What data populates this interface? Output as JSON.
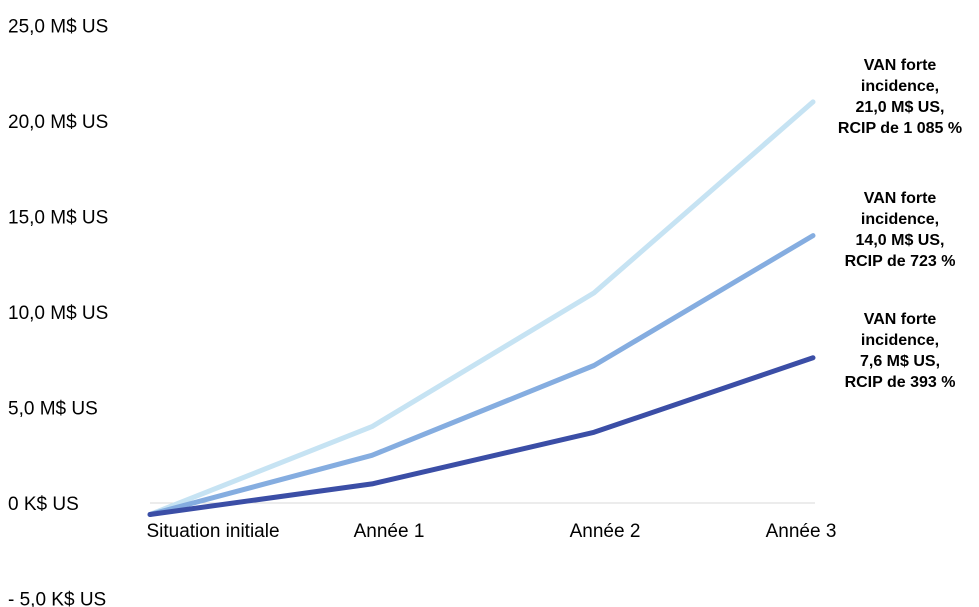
{
  "chart_data": {
    "type": "line",
    "title": "",
    "xlabel": "",
    "ylabel": "",
    "categories": [
      "Situation initiale",
      "Année 1",
      "Année 2",
      "Année 3"
    ],
    "ylim": [
      -5,
      25
    ],
    "y_ticks": [
      {
        "value": 25,
        "label": "25,0 M$ US"
      },
      {
        "value": 20,
        "label": "20,0 M$ US"
      },
      {
        "value": 15,
        "label": "15,0 M$ US"
      },
      {
        "value": 10,
        "label": "10,0 M$ US"
      },
      {
        "value": 5,
        "label": "5,0 M$ US"
      },
      {
        "value": 0,
        "label": "0 K$ US"
      },
      {
        "value": -5,
        "label": "- 5,0 K$ US"
      }
    ],
    "grid": false,
    "series": [
      {
        "color": "#c6e3f3",
        "values": [
          -0.6,
          4.0,
          11.0,
          21.0
        ],
        "annotation": [
          "VAN forte",
          "incidence,",
          "21,0 M$ US,",
          "RCIP de 1 085 %"
        ]
      },
      {
        "color": "#85ade0",
        "values": [
          -0.6,
          2.5,
          7.2,
          14.0
        ],
        "annotation": [
          "VAN forte",
          "incidence,",
          "14,0 M$ US,",
          "RCIP de 723 %"
        ]
      },
      {
        "color": "#3b4ea6",
        "values": [
          -0.6,
          1.0,
          3.7,
          7.6
        ],
        "annotation": [
          "VAN forte",
          "incidence,",
          "7,6 M$ US,",
          "RCIP de 393 %"
        ]
      }
    ]
  }
}
